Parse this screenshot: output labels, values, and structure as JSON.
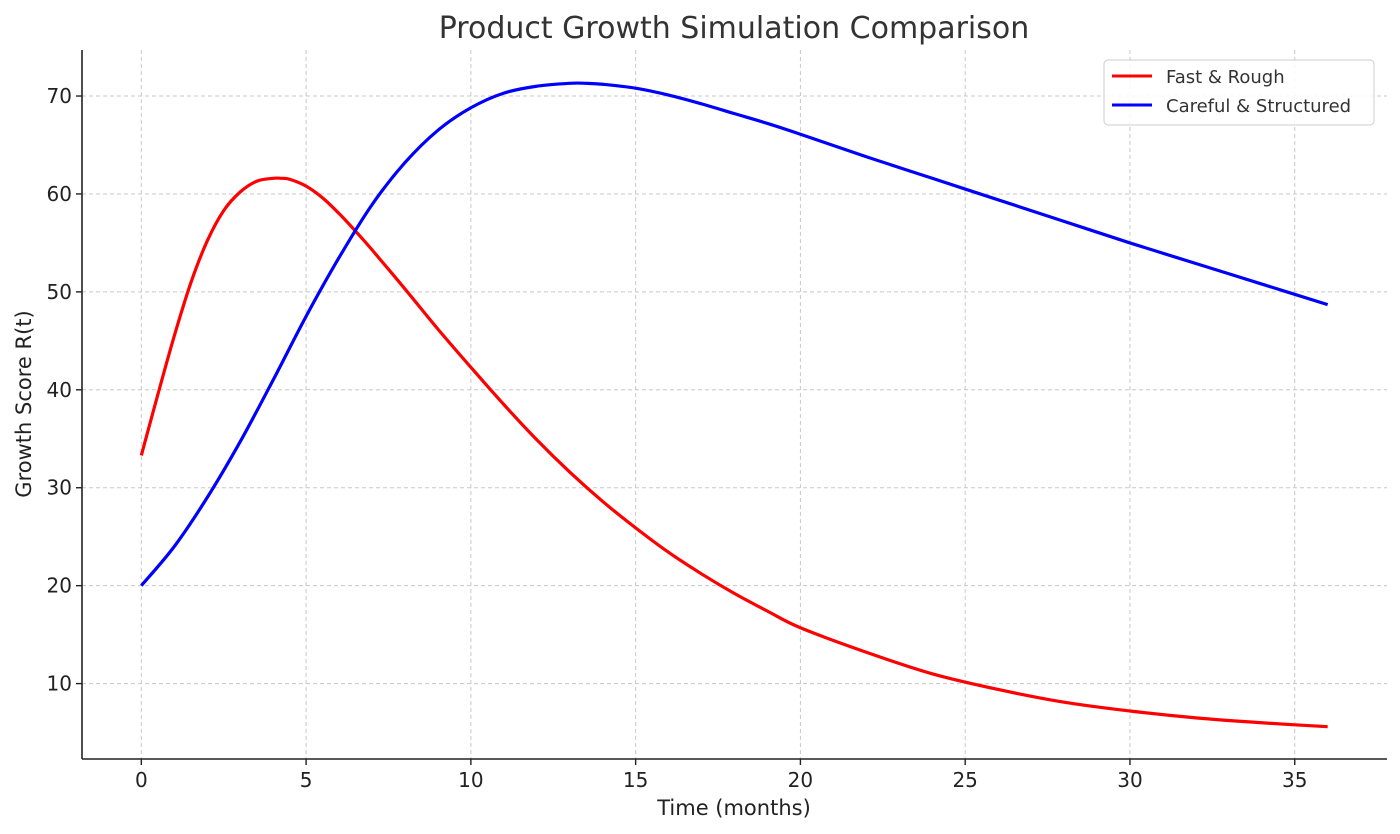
{
  "chart_data": {
    "type": "line",
    "title": "Product Growth Simulation Comparison",
    "xlabel": "Time (months)",
    "ylabel": "Growth Score R(t)",
    "xlim": [
      -1.8,
      37.8
    ],
    "ylim": [
      2.3,
      74.7
    ],
    "xticks": [
      0,
      5,
      10,
      15,
      20,
      25,
      30,
      35
    ],
    "yticks": [
      10,
      20,
      30,
      40,
      50,
      60,
      70
    ],
    "grid": true,
    "legend_position": "top-right",
    "series": [
      {
        "name": "Fast & Rough",
        "color": "#ff0000",
        "x": [
          0,
          0.5,
          1,
          1.5,
          2,
          2.5,
          3,
          3.5,
          4,
          4.25,
          4.5,
          5,
          5.5,
          6,
          6.5,
          7,
          8,
          9,
          10,
          11,
          12,
          13,
          14,
          15,
          16,
          17,
          18,
          19,
          20,
          22,
          24,
          26,
          28,
          30,
          32,
          34,
          36
        ],
        "y": [
          33.3,
          39.5,
          45.5,
          50.9,
          55.2,
          58.3,
          60.2,
          61.3,
          61.6,
          61.6,
          61.5,
          60.8,
          59.6,
          58.0,
          56.2,
          54.3,
          50.3,
          46.2,
          42.3,
          38.5,
          34.9,
          31.6,
          28.6,
          25.9,
          23.4,
          21.2,
          19.2,
          17.4,
          15.7,
          13.2,
          11.0,
          9.4,
          8.1,
          7.2,
          6.5,
          6.0,
          5.6
        ]
      },
      {
        "name": "Careful & Structured",
        "color": "#0000ff",
        "x": [
          0,
          1,
          2,
          3,
          4,
          5,
          6,
          7,
          8,
          9,
          10,
          11,
          12,
          13,
          13.5,
          14,
          15,
          16,
          17,
          18,
          19,
          20,
          22,
          24,
          26,
          28,
          30,
          32,
          34,
          36
        ],
        "y": [
          20.0,
          24.0,
          29.0,
          34.7,
          41.0,
          47.5,
          53.5,
          58.9,
          63.2,
          66.5,
          68.8,
          70.3,
          71.0,
          71.3,
          71.3,
          71.2,
          70.8,
          70.1,
          69.2,
          68.2,
          67.2,
          66.1,
          63.8,
          61.6,
          59.4,
          57.2,
          55.0,
          52.9,
          50.8,
          48.7
        ]
      }
    ]
  }
}
